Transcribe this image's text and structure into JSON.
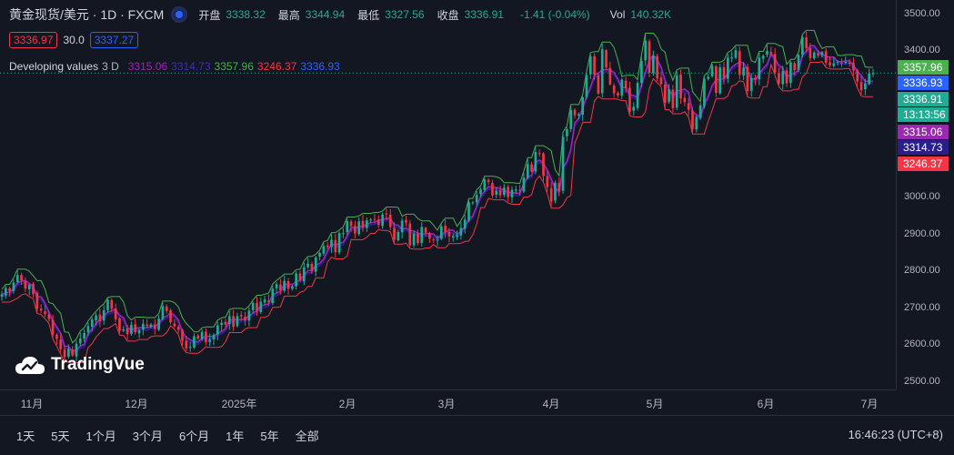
{
  "header": {
    "symbol": "黄金现货/美元 · 1D · FXCM",
    "open_label": "开盘",
    "open": "3338.32",
    "high_label": "最高",
    "high": "3344.94",
    "low_label": "最低",
    "low": "3327.56",
    "close_label": "收盘",
    "close": "3336.91",
    "change": "-1.41 (-0.04%)",
    "vol_label": "Vol",
    "vol": "140.32K"
  },
  "indicator": {
    "value_a": "3336.97",
    "length": "30.0",
    "value_b": "3337.27",
    "title": "Developing values",
    "period": "3 D",
    "values": [
      "3315.06",
      "3314.73",
      "3357.96",
      "3246.37",
      "3336.93"
    ]
  },
  "colors": {
    "bg": "#131722",
    "up": "#22ab94",
    "down": "#f23645",
    "upper": "#4caf50",
    "lower": "#f23645",
    "mid_purple": "#9c27b0",
    "mid_navy": "#2b1e8c",
    "blue": "#2962ff"
  },
  "price_axis": {
    "ticks": [
      "3500.00",
      "3400.00",
      "3300.00",
      "3200.00",
      "3100.00",
      "3000.00",
      "2900.00",
      "2800.00",
      "2700.00",
      "2600.00",
      "2500.00"
    ],
    "tags": [
      {
        "text": "3357.96",
        "color": "#4caf50"
      },
      {
        "text": "3336.93",
        "color": "#2962ff"
      },
      {
        "text": "3336.91",
        "color": "#22ab94"
      },
      {
        "text": "13:13:56",
        "color": "#22ab94"
      },
      {
        "text": "3315.06",
        "color": "#9c27b0"
      },
      {
        "text": "3314.73",
        "color": "#2b1e8c"
      },
      {
        "text": "3246.37",
        "color": "#f23645"
      }
    ]
  },
  "time_axis": {
    "labels": [
      "11月",
      "12月",
      "2025年",
      "2月",
      "3月",
      "4月",
      "5月",
      "6月",
      "7月"
    ]
  },
  "ranges": [
    "1天",
    "5天",
    "1个月",
    "3个月",
    "6个月",
    "1年",
    "5年",
    "全部"
  ],
  "clock": "16:46:23 (UTC+8)",
  "logo": {
    "text": "TradingVue",
    "icon": "cloud-logo-icon"
  },
  "chart_data": {
    "type": "candlestick",
    "ylim": [
      2500,
      3500
    ],
    "current_price": 3336.91,
    "closes": [
      2734,
      2751,
      2743,
      2766,
      2787,
      2772,
      2750,
      2760,
      2736,
      2695,
      2690,
      2681,
      2667,
      2625,
      2613,
      2585,
      2563,
      2586,
      2568,
      2600,
      2614,
      2629,
      2648,
      2666,
      2677,
      2661,
      2691,
      2719,
      2695,
      2666,
      2635,
      2639,
      2626,
      2651,
      2631,
      2637,
      2654,
      2648,
      2652,
      2640,
      2668,
      2702,
      2689,
      2658,
      2647,
      2638,
      2608,
      2587,
      2591,
      2620,
      2614,
      2632,
      2604,
      2612,
      2624,
      2650,
      2657,
      2652,
      2675,
      2646,
      2675,
      2674,
      2663,
      2690,
      2711,
      2688,
      2714,
      2720,
      2713,
      2750,
      2762,
      2745,
      2771,
      2749,
      2756,
      2791,
      2772,
      2808,
      2818,
      2799,
      2835,
      2847,
      2866,
      2863,
      2883,
      2849,
      2901,
      2901,
      2934,
      2920,
      2900,
      2933,
      2916,
      2936,
      2938,
      2938,
      2923,
      2952,
      2952,
      2918,
      2883,
      2904,
      2935,
      2930,
      2868,
      2900,
      2874,
      2918,
      2902,
      2886,
      2882,
      2883,
      2919,
      2903,
      2892,
      2893,
      2896,
      2915,
      2938,
      2985,
      2985,
      3005,
      3021,
      3047,
      3040,
      3004,
      3016,
      3004,
      3025,
      2999,
      3019,
      3020,
      3016,
      3052,
      3089,
      3069,
      3122,
      3118,
      3057,
      3026,
      2987,
      3038,
      3014,
      3163,
      3184,
      3236,
      3222,
      3225,
      3271,
      3331,
      3382,
      3333,
      3281,
      3402,
      3352,
      3306,
      3282,
      3276,
      3319,
      3296,
      3232,
      3245,
      3310,
      3370,
      3425,
      3338,
      3384,
      3322,
      3307,
      3256,
      3293,
      3241,
      3331,
      3268,
      3258,
      3237,
      3184,
      3217,
      3249,
      3321,
      3327,
      3357,
      3283,
      3352,
      3322,
      3379,
      3380,
      3399,
      3332,
      3352,
      3288,
      3323,
      3319,
      3379,
      3384,
      3397,
      3388,
      3339,
      3309,
      3342,
      3309,
      3366,
      3345,
      3386,
      3434,
      3405,
      3378,
      3393,
      3385,
      3394,
      3365,
      3358,
      3364,
      3368,
      3365,
      3367,
      3364,
      3344,
      3314,
      3290,
      3309,
      3335,
      3337
    ]
  }
}
